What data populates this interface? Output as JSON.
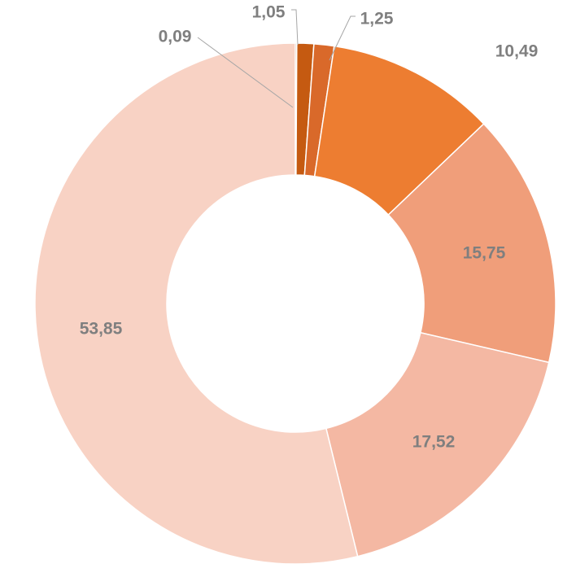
{
  "chart_data": {
    "type": "pie",
    "subtype": "doughnut",
    "title": "",
    "legend": "none",
    "slices": [
      {
        "label": "0,09",
        "value": 0.09,
        "color": "#843c0c"
      },
      {
        "label": "1,05",
        "value": 1.05,
        "color": "#c55a11"
      },
      {
        "label": "1,25",
        "value": 1.25,
        "color": "#d9692a"
      },
      {
        "label": "10,49",
        "value": 10.49,
        "color": "#ed7d31"
      },
      {
        "label": "15,75",
        "value": 15.75,
        "color": "#f09e7a"
      },
      {
        "label": "17,52",
        "value": 17.52,
        "color": "#f4b8a3"
      },
      {
        "label": "53,85",
        "value": 53.85,
        "color": "#f8d2c4"
      }
    ]
  }
}
